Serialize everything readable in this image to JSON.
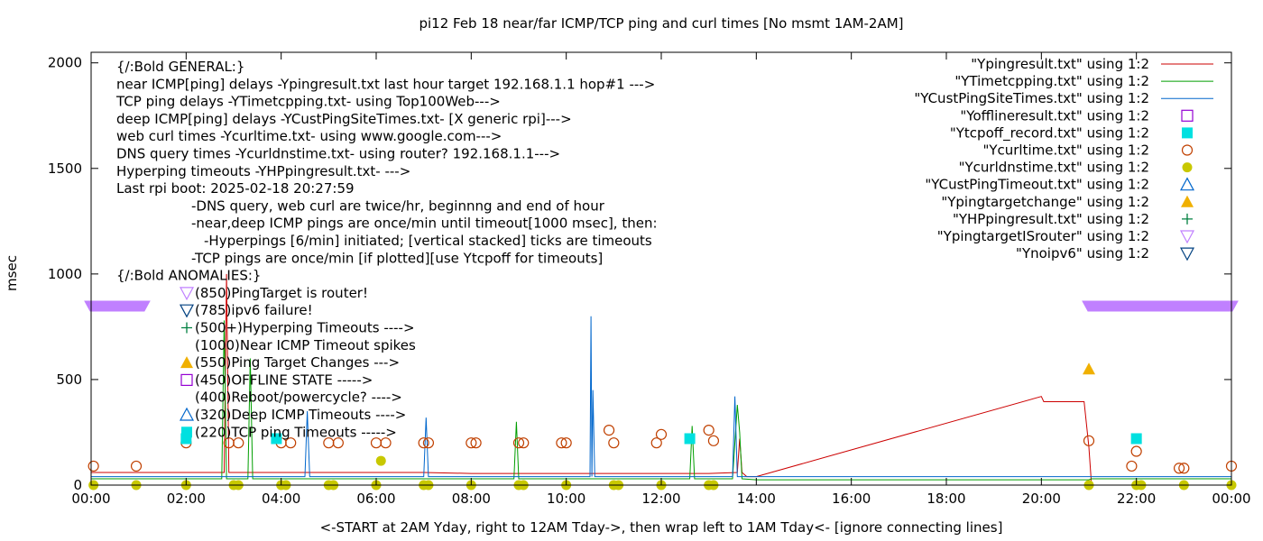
{
  "chart_data": {
    "type": "line",
    "title": "pi12 Feb 18  near/far ICMP/TCP ping and curl times [No msmt 1AM-2AM]",
    "xlabel": "<-START at 2AM Yday, right to 12AM Tday->, then wrap left to 1AM Tday<- [ignore connecting lines]",
    "ylabel": "msec",
    "xlim": [
      0,
      24
    ],
    "ylim": [
      0,
      2050
    ],
    "x_ticks": [
      0,
      2,
      4,
      6,
      8,
      10,
      12,
      14,
      16,
      18,
      20,
      22,
      24
    ],
    "x_tick_labels": [
      "00:00",
      "02:00",
      "04:00",
      "06:00",
      "08:00",
      "10:00",
      "12:00",
      "14:00",
      "16:00",
      "18:00",
      "20:00",
      "22:00",
      "00:00"
    ],
    "y_ticks": [
      0,
      500,
      1000,
      1500,
      2000
    ],
    "y_tick_labels": [
      "0",
      "500",
      "1000",
      "1500",
      "2000"
    ],
    "grid": false,
    "legend_position": "top-right",
    "legend": [
      {
        "label": "\"Ypingresult.txt\" using 1:2",
        "symbol": "line",
        "color": "#cc0000"
      },
      {
        "label": "\"YTimetcpping.txt\" using 1:2",
        "symbol": "line",
        "color": "#009e00"
      },
      {
        "label": "\"YCustPingSiteTimes.txt\" using 1:2",
        "symbol": "line",
        "color": "#0066cc"
      },
      {
        "label": "\"Yofflineresult.txt\" using 1:2",
        "symbol": "open-square",
        "color": "#9400d3"
      },
      {
        "label": "\"Ytcpoff_record.txt\" using 1:2",
        "symbol": "filled-square",
        "color": "#00e0e0"
      },
      {
        "label": "\"Ycurltime.txt\" using 1:2",
        "symbol": "open-circle",
        "color": "#c04000"
      },
      {
        "label": "\"Ycurldnstime.txt\" using 1:2",
        "symbol": "filled-circle",
        "color": "#c8c800"
      },
      {
        "label": "\"YCustPingTimeout.txt\" using 1:2",
        "symbol": "open-triangle-up",
        "color": "#0066cc"
      },
      {
        "label": "\"Ypingtargetchange\" using 1:2",
        "symbol": "filled-triangle-up",
        "color": "#f0b000"
      },
      {
        "label": "\"YHPpingresult.txt\" using 1:2",
        "symbol": "plus",
        "color": "#008040"
      },
      {
        "label": "\"YpingtargetISrouter\" using 1:2",
        "symbol": "open-triangle-down",
        "color": "#c080ff"
      },
      {
        "label": "\"Ynoipv6\" using 1:2",
        "symbol": "open-triangle-down",
        "color": "#004080"
      }
    ],
    "annotation_lines": [
      "{/:Bold GENERAL:}",
      "near ICMP[ping] delays -Ypingresult.txt last hour target 192.168.1.1 hop#1 --->",
      "TCP ping delays -YTimetcpping.txt- using Top100Web--->",
      "deep ICMP[ping] delays -YCustPingSiteTimes.txt- [X generic rpi]--->",
      "web curl times -Ycurltime.txt- using www.google.com--->",
      "DNS query times -Ycurldnstime.txt- using router? 192.168.1.1--->",
      "Hyperping timeouts -YHPpingresult.txt- --->",
      "Last rpi boot: 2025-02-18 20:27:59",
      "-DNS query, web curl are twice/hr, beginnng and end of hour",
      "-near,deep ICMP pings are once/min until timeout[1000 msec], then:",
      "-Hyperpings [6/min] initiated; [vertical stacked] ticks are timeouts",
      "-TCP pings are once/min [if plotted][use Ytcpoff for timeouts]",
      "{/:Bold ANOMALIES:}",
      "(850)PingTarget is router!",
      "(785)ipv6 failure!",
      "(500+)Hyperping Timeouts ---->",
      "(1000)Near ICMP Timeout spikes",
      "(550)Ping Target Changes --->",
      "(450)OFFLINE STATE ----->",
      "(400)Reboot/powercycle? ---->",
      "(320)Deep ICMP Timeouts ---->",
      "(220)TCP ping Timeouts ----->"
    ],
    "anomaly_symbols": [
      "open-triangle-down-lilac",
      "open-triangle-down-navy",
      "plus",
      "",
      "filled-triangle-up",
      "open-square",
      "",
      "open-triangle-up",
      "filled-square"
    ],
    "series": [
      {
        "name": "\"Ypingresult.txt\" using 1:2",
        "color": "#cc0000",
        "x": [
          0,
          0.5,
          1,
          2,
          2.8,
          2.85,
          2.9,
          3.0,
          4,
          5,
          6,
          7,
          8,
          9,
          10,
          11,
          12,
          13,
          13.6,
          13.65,
          13.7,
          13.8,
          14,
          20.0,
          20.05,
          20.9,
          21.0,
          21.05
        ],
        "y": [
          60,
          60,
          60,
          60,
          60,
          1000,
          60,
          60,
          60,
          60,
          60,
          60,
          55,
          55,
          55,
          55,
          55,
          55,
          60,
          220,
          60,
          40,
          40,
          420,
          395,
          395,
          180,
          20
        ]
      },
      {
        "name": "\"YTimetcpping.txt\" using 1:2",
        "color": "#009e00",
        "x": [
          0,
          1,
          2.75,
          2.8,
          2.85,
          3.3,
          3.35,
          3.4,
          4,
          6,
          8,
          8.9,
          8.95,
          9.0,
          10,
          11,
          12,
          12.6,
          12.65,
          12.7,
          13.5,
          13.6,
          13.65,
          13.7,
          14,
          21.0,
          21.05,
          22,
          24
        ],
        "y": [
          30,
          30,
          30,
          780,
          30,
          30,
          600,
          30,
          30,
          30,
          30,
          30,
          300,
          30,
          30,
          30,
          30,
          30,
          280,
          30,
          30,
          380,
          250,
          30,
          25,
          25,
          30,
          30,
          30
        ]
      },
      {
        "name": "\"YCustPingSiteTimes.txt\" using 1:2",
        "color": "#0066cc",
        "x": [
          0,
          1,
          2,
          4.5,
          4.55,
          4.6,
          7.0,
          7.05,
          7.1,
          10.5,
          10.52,
          10.54,
          10.56,
          10.6,
          12,
          13.5,
          13.55,
          13.6,
          14,
          21.0,
          21.05,
          22,
          24
        ],
        "y": [
          40,
          40,
          40,
          40,
          350,
          40,
          40,
          320,
          40,
          40,
          800,
          40,
          450,
          40,
          40,
          40,
          420,
          40,
          40,
          40,
          40,
          40,
          40
        ]
      },
      {
        "name": "\"YpingtargetISrouter\" using 1:2",
        "color": "#c080ff",
        "x": [
          0,
          1.1,
          21.0,
          24
        ],
        "y": [
          850,
          850,
          850,
          850
        ]
      },
      {
        "name": "\"Ycurltime.txt\" using 1:2",
        "color": "#c04000",
        "x": [
          0.05,
          0.95,
          2.0,
          2.9,
          3.1,
          4.0,
          4.2,
          5.0,
          5.2,
          6.0,
          6.2,
          7.0,
          7.1,
          8.0,
          8.1,
          9.0,
          9.1,
          9.9,
          10.0,
          10.9,
          11.0,
          11.9,
          12.0,
          13.0,
          13.1,
          21.0,
          21.9,
          22.0,
          22.9,
          23.0,
          24.0
        ],
        "y": [
          90,
          90,
          200,
          200,
          200,
          200,
          200,
          200,
          200,
          200,
          200,
          200,
          200,
          200,
          200,
          200,
          200,
          200,
          200,
          260,
          200,
          200,
          240,
          260,
          210,
          210,
          90,
          160,
          80,
          80,
          90
        ]
      },
      {
        "name": "\"Ycurldnstime.txt\" using 1:2",
        "color": "#c8c800",
        "x": [
          0.05,
          0.95,
          2.0,
          3.0,
          3.1,
          4.0,
          4.1,
          5.0,
          5.1,
          6.0,
          6.1,
          7.0,
          7.1,
          8.0,
          9.0,
          9.1,
          10.0,
          11.0,
          11.1,
          12.0,
          13.0,
          13.1,
          21.0,
          22.0,
          22.1,
          23.0,
          24.0
        ],
        "y": [
          0,
          0,
          0,
          0,
          0,
          0,
          0,
          0,
          0,
          0,
          115,
          0,
          0,
          0,
          0,
          0,
          0,
          0,
          0,
          0,
          0,
          0,
          0,
          0,
          0,
          0,
          0
        ]
      },
      {
        "name": "\"Ytcpoff_record.txt\" using 1:2",
        "color": "#00e0e0",
        "x": [
          2.0,
          3.9,
          12.6,
          22.0
        ],
        "y": [
          220,
          220,
          220,
          220
        ]
      },
      {
        "name": "\"Ypingtargetchange\" using 1:2",
        "color": "#f0b000",
        "x": [
          21.0
        ],
        "y": [
          550
        ]
      }
    ]
  }
}
